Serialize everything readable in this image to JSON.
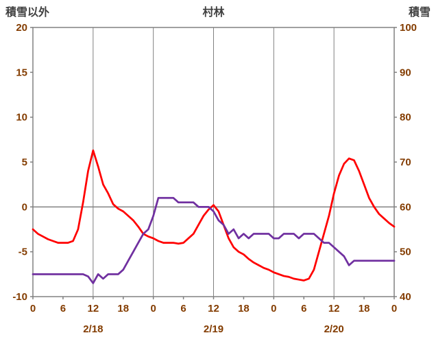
{
  "header": {
    "left_axis_label": "積雪以外",
    "title": "村林",
    "right_axis_label": "積雪"
  },
  "colors": {
    "red_series": "#FF0000",
    "purple_series": "#7030A0",
    "grid": "#808080",
    "border": "#808080",
    "tick_text": "#833C00",
    "header_text": "#3f3f3f"
  },
  "chart_data": {
    "type": "line",
    "title": "村林",
    "left_axis": {
      "label": "積雪以外",
      "min": -10,
      "max": 20,
      "ticks": [
        20,
        15,
        10,
        5,
        0,
        -5,
        -10
      ]
    },
    "right_axis": {
      "label": "積雪",
      "min": 40,
      "max": 100,
      "ticks": [
        100,
        90,
        80,
        70,
        60,
        50,
        40
      ]
    },
    "x_axis": {
      "min_hour": 0,
      "max_hour": 72,
      "tick_hours": [
        0,
        6,
        12,
        18,
        24,
        30,
        36,
        42,
        48,
        54,
        60,
        66,
        72
      ],
      "tick_labels": [
        "0",
        "6",
        "12",
        "18",
        "0",
        "6",
        "12",
        "18",
        "0",
        "6",
        "12",
        "18",
        "0"
      ],
      "date_labels": [
        {
          "label": "2/18",
          "hour": 12
        },
        {
          "label": "2/19",
          "hour": 36
        },
        {
          "label": "2/20",
          "hour": 60
        }
      ],
      "vertical_gridline_hours": [
        12,
        24,
        36,
        48,
        60
      ],
      "horizontal_gridline_left_value": 0
    },
    "series": [
      {
        "id": "red",
        "axis": "left",
        "color": "#FF0000",
        "values": [
          -2.5,
          -3.0,
          -3.3,
          -3.6,
          -3.8,
          -4.0,
          -4.0,
          -4.0,
          -3.8,
          -2.5,
          0.5,
          4.0,
          6.3,
          4.5,
          2.5,
          1.5,
          0.3,
          -0.2,
          -0.5,
          -1.0,
          -1.5,
          -2.2,
          -3.0,
          -3.3,
          -3.5,
          -3.8,
          -4.0,
          -4.0,
          -4.0,
          -4.1,
          -4.0,
          -3.5,
          -3.0,
          -2.0,
          -1.0,
          -0.3,
          0.2,
          -0.5,
          -2.0,
          -3.5,
          -4.5,
          -5.0,
          -5.3,
          -5.8,
          -6.2,
          -6.5,
          -6.8,
          -7.0,
          -7.3,
          -7.5,
          -7.7,
          -7.8,
          -8.0,
          -8.1,
          -8.2,
          -8.0,
          -7.0,
          -5.0,
          -3.0,
          -1.0,
          1.5,
          3.5,
          4.8,
          5.4,
          5.2,
          4.0,
          2.5,
          1.0,
          0.0,
          -0.8,
          -1.3,
          -1.8,
          -2.2
        ]
      },
      {
        "id": "purple",
        "axis": "right",
        "color": "#7030A0",
        "values": [
          45,
          45,
          45,
          45,
          45,
          45,
          45,
          45,
          45,
          45,
          45,
          44.5,
          43,
          45,
          44,
          45,
          45,
          45,
          46,
          48,
          50,
          52,
          54,
          55,
          58,
          62,
          62,
          62,
          62,
          61,
          61,
          61,
          61,
          60,
          60,
          60,
          59,
          57,
          56,
          54,
          55,
          53,
          54,
          53,
          54,
          54,
          54,
          54,
          53,
          53,
          54,
          54,
          54,
          53,
          54,
          54,
          54,
          53,
          52,
          52,
          51,
          50,
          49,
          47,
          48,
          48,
          48,
          48,
          48,
          48,
          48,
          48,
          48
        ]
      }
    ]
  }
}
